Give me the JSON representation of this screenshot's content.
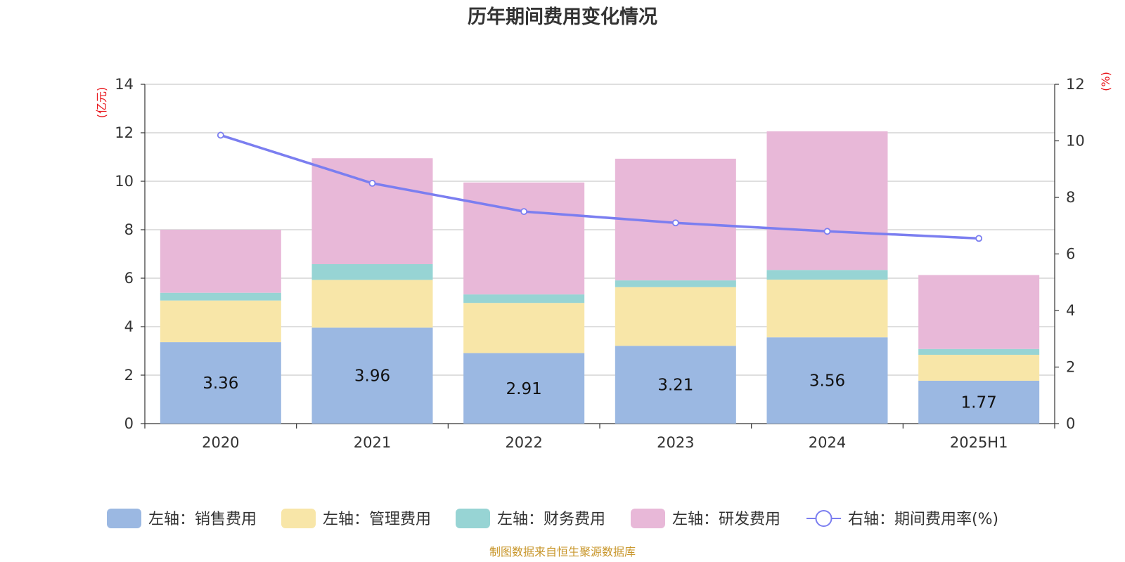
{
  "chart_data": {
    "type": "bar",
    "title": "历年期间费用变化情况",
    "categories": [
      "2020",
      "2021",
      "2022",
      "2023",
      "2024",
      "2025H1"
    ],
    "series": [
      {
        "name": "左轴：销售费用",
        "axis": "left",
        "kind": "bar",
        "color": "#9bb8e2",
        "values": [
          3.36,
          3.96,
          2.91,
          3.21,
          3.56,
          1.77
        ],
        "show_labels": true
      },
      {
        "name": "左轴：管理费用",
        "axis": "left",
        "kind": "bar",
        "color": "#f8e6a8",
        "values": [
          1.72,
          1.97,
          2.07,
          2.42,
          2.38,
          1.07
        ]
      },
      {
        "name": "左轴：财务费用",
        "axis": "left",
        "kind": "bar",
        "color": "#97d4d4",
        "values": [
          0.32,
          0.65,
          0.35,
          0.28,
          0.4,
          0.24
        ]
      },
      {
        "name": "左轴：研发费用",
        "axis": "left",
        "kind": "bar",
        "color": "#e8b8d8",
        "values": [
          2.6,
          4.37,
          4.62,
          5.02,
          5.72,
          3.05
        ]
      },
      {
        "name": "右轴：期间费用率(%)",
        "axis": "right",
        "kind": "line",
        "color": "#7b7ef0",
        "values": [
          10.2,
          8.5,
          7.5,
          7.1,
          6.8,
          6.55
        ]
      }
    ],
    "y_left": {
      "unit": "(亿元)",
      "ylim": [
        0,
        14
      ],
      "ticks": [
        "0",
        "2",
        "4",
        "6",
        "8",
        "10",
        "12",
        "14"
      ]
    },
    "y_right": {
      "unit": "(%)",
      "ylim": [
        0,
        12
      ],
      "ticks": [
        "0",
        "2",
        "4",
        "6",
        "8",
        "10",
        "12"
      ]
    },
    "grid": true,
    "legend": "bottom",
    "source": "制图数据来自恒生聚源数据库",
    "source_color": "#c8962a"
  }
}
